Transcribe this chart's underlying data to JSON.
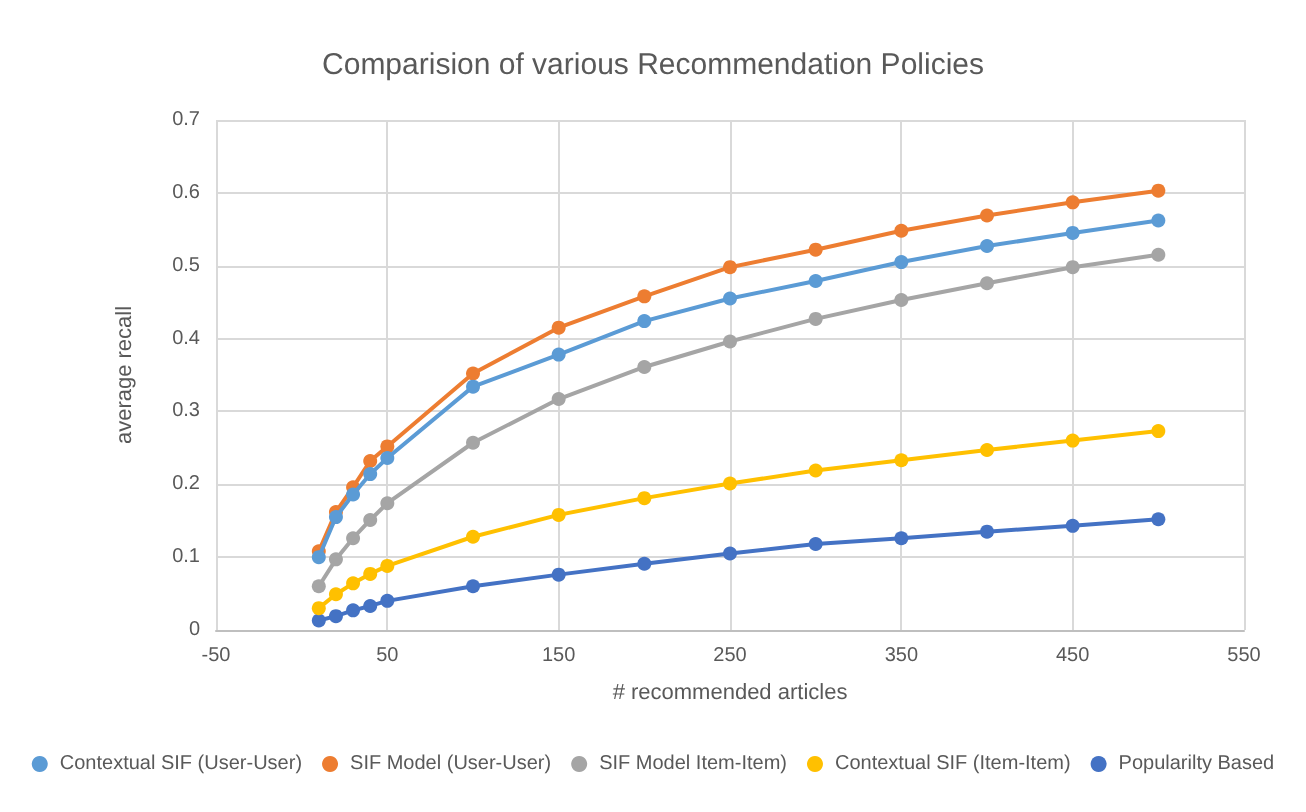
{
  "chart_data": {
    "type": "line",
    "title": "Comparision of various Recommendation Policies",
    "xlabel": "# recommended articles",
    "ylabel": "average recall",
    "x": [
      10,
      20,
      30,
      40,
      50,
      100,
      150,
      200,
      250,
      300,
      350,
      400,
      450,
      500
    ],
    "series": [
      {
        "name": "Contextual SIF (User-User)",
        "color": "#5b9bd5",
        "values": [
          0.1,
          0.155,
          0.186,
          0.214,
          0.236,
          0.334,
          0.378,
          0.424,
          0.455,
          0.479,
          0.505,
          0.527,
          0.545,
          0.562
        ]
      },
      {
        "name": "SIF Model (User-User)",
        "color": "#ed7d31",
        "values": [
          0.108,
          0.162,
          0.196,
          0.232,
          0.252,
          0.352,
          0.415,
          0.458,
          0.498,
          0.522,
          0.548,
          0.569,
          0.587,
          0.603
        ]
      },
      {
        "name": "SIF Model Item-Item)",
        "color": "#a5a5a5",
        "values": [
          0.06,
          0.097,
          0.126,
          0.151,
          0.174,
          0.257,
          0.317,
          0.361,
          0.396,
          0.427,
          0.453,
          0.476,
          0.498,
          0.515
        ]
      },
      {
        "name": "Contextual SIF (Item-Item)",
        "color": "#ffc000",
        "values": [
          0.03,
          0.049,
          0.064,
          0.077,
          0.088,
          0.128,
          0.158,
          0.181,
          0.201,
          0.219,
          0.233,
          0.247,
          0.26,
          0.273
        ]
      },
      {
        "name": "Popularilty Based",
        "color": "#4472c4",
        "values": [
          0.013,
          0.019,
          0.027,
          0.033,
          0.04,
          0.06,
          0.076,
          0.091,
          0.105,
          0.118,
          0.126,
          0.135,
          0.143,
          0.152
        ]
      }
    ],
    "xlim": [
      -50,
      550
    ],
    "xticks": [
      -50,
      50,
      150,
      250,
      350,
      450,
      550
    ],
    "ylim": [
      0,
      0.7
    ],
    "yticks": [
      0,
      0.1,
      0.2,
      0.3,
      0.4,
      0.5,
      0.6,
      0.7
    ],
    "grid": true,
    "legend": "bottom",
    "marker": "circle",
    "line_style": "solid"
  }
}
